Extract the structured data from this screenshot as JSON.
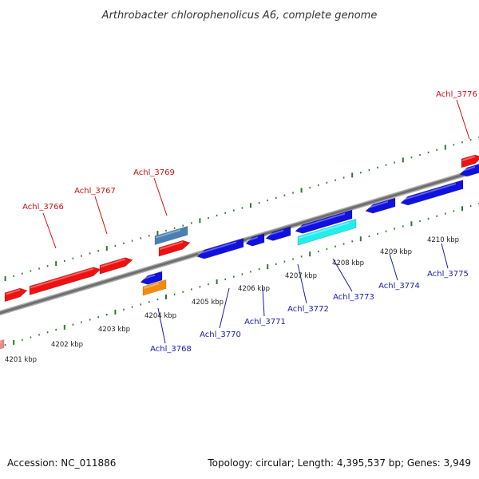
{
  "title": "Arthrobacter chlorophenolicus A6, complete genome",
  "footer": {
    "accession": "Accession: NC_011886",
    "summary": "Topology: circular; Length: 4,395,537 bp; Genes: 3,949"
  },
  "colors": {
    "forward_gene": "#ee1111",
    "reverse_gene": "#1111dd",
    "forward_label": "#cc1111",
    "reverse_label": "#1a1aaa",
    "backbone": "#7a7a7a",
    "ticks": "#2a7a2a"
  },
  "scale": {
    "unit": "kbp",
    "labels": [
      "4201 kbp",
      "4202 kbp",
      "4203 kbp",
      "4204 kbp",
      "4205 kbp",
      "4206 kbp",
      "4207 kbp",
      "4208 kbp",
      "4209 kbp",
      "4210 kbp"
    ]
  },
  "genes": [
    {
      "id": "Achl_3766",
      "strand": "+",
      "color": "#ee1111"
    },
    {
      "id": "Achl_3767",
      "strand": "+",
      "color": "#ee1111"
    },
    {
      "id": "Achl_3768",
      "strand": "-",
      "color": "#1111dd"
    },
    {
      "id": "Achl_3769",
      "strand": "+",
      "color": "#ee1111"
    },
    {
      "id": "Achl_3770",
      "strand": "-",
      "color": "#1111dd"
    },
    {
      "id": "Achl_3771",
      "strand": "-",
      "color": "#1111dd"
    },
    {
      "id": "Achl_3772",
      "strand": "-",
      "color": "#1111dd"
    },
    {
      "id": "Achl_3773",
      "strand": "-",
      "color": "#1111dd"
    },
    {
      "id": "Achl_3774",
      "strand": "-",
      "color": "#1111dd"
    },
    {
      "id": "Achl_3775",
      "strand": "-",
      "color": "#1111dd"
    },
    {
      "id": "Achl_3776",
      "strand": "+",
      "color": "#ee1111"
    }
  ],
  "other_features": [
    {
      "kind": "steelblue-feature",
      "color": "#4a7fb5"
    },
    {
      "kind": "orange-feature",
      "color": "#f28c0f"
    },
    {
      "kind": "cyan-feature",
      "color": "#22eeee"
    },
    {
      "kind": "pink-feature",
      "color": "#ee8888"
    }
  ]
}
